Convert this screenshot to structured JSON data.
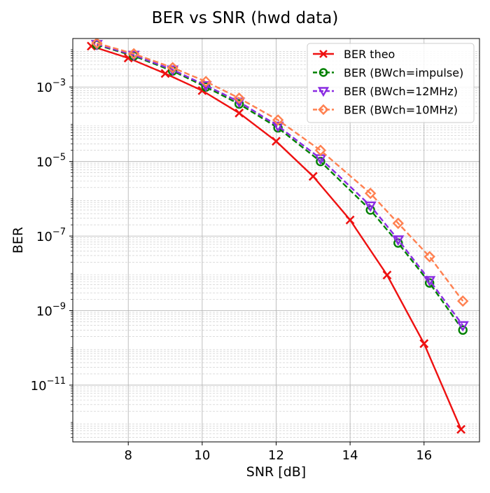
{
  "chart_data": {
    "type": "line",
    "title": "BER vs SNR  (hwd data)",
    "xlabel": "SNR [dB]",
    "ylabel": "BER",
    "xscale": "linear",
    "yscale": "log",
    "xlim": [
      6.5,
      17.5
    ],
    "ylim": [
      3e-13,
      0.02
    ],
    "xticks": [
      8,
      10,
      12,
      14,
      16
    ],
    "xtick_labels": [
      "8",
      "10",
      "12",
      "14",
      "16"
    ],
    "yticks": [
      1e-11,
      1e-09,
      1e-07,
      1e-05,
      0.001
    ],
    "ytick_labels": [
      {
        "base": "10",
        "exp": "−11"
      },
      {
        "base": "10",
        "exp": "−9"
      },
      {
        "base": "10",
        "exp": "−7"
      },
      {
        "base": "10",
        "exp": "−5"
      },
      {
        "base": "10",
        "exp": "−3"
      }
    ],
    "grid": true,
    "minor_grid": true,
    "legend_position": "top-right",
    "series": [
      {
        "name": "BER theo",
        "color": "#ee1111",
        "marker": "x",
        "linestyle": "solid",
        "x": [
          7,
          8,
          9,
          10,
          11,
          12,
          13,
          14,
          15,
          16,
          17
        ],
        "y": [
          0.0125,
          0.006,
          0.0023,
          0.0008,
          0.0002,
          3.5e-05,
          4e-06,
          2.7e-07,
          9e-09,
          1.3e-10,
          6.5e-13
        ]
      },
      {
        "name": "BER (BWch=impulse)",
        "color": "#008000",
        "marker": "circle",
        "linestyle": "dashed",
        "x": [
          7.15,
          8.15,
          9.2,
          10.1,
          11.0,
          12.05,
          13.2,
          14.55,
          15.3,
          16.15,
          17.05
        ],
        "y": [
          0.0135,
          0.0068,
          0.0027,
          0.001,
          0.00035,
          8e-05,
          1e-05,
          5e-07,
          6.5e-08,
          5.5e-09,
          3e-10
        ]
      },
      {
        "name": "BER (BWch=12MHz)",
        "color": "#8a2be2",
        "marker": "triangle-down",
        "linestyle": "dashed",
        "x": [
          7.15,
          8.15,
          9.2,
          10.1,
          11.0,
          12.05,
          13.2,
          14.55,
          15.3,
          16.15,
          17.05
        ],
        "y": [
          0.014,
          0.0072,
          0.0029,
          0.0011,
          0.0004,
          9e-05,
          1.2e-05,
          6.5e-07,
          8e-08,
          6.5e-09,
          4e-10
        ]
      },
      {
        "name": "BER (BWch=10MHz)",
        "color": "#ff8050",
        "marker": "diamond",
        "linestyle": "dashed",
        "x": [
          7.15,
          8.15,
          9.2,
          10.1,
          11.0,
          12.05,
          13.2,
          14.55,
          15.3,
          16.15,
          17.05
        ],
        "y": [
          0.015,
          0.0078,
          0.0033,
          0.0014,
          0.0005,
          0.00013,
          2e-05,
          1.4e-06,
          2.2e-07,
          2.8e-08,
          1.8e-09
        ]
      }
    ]
  }
}
